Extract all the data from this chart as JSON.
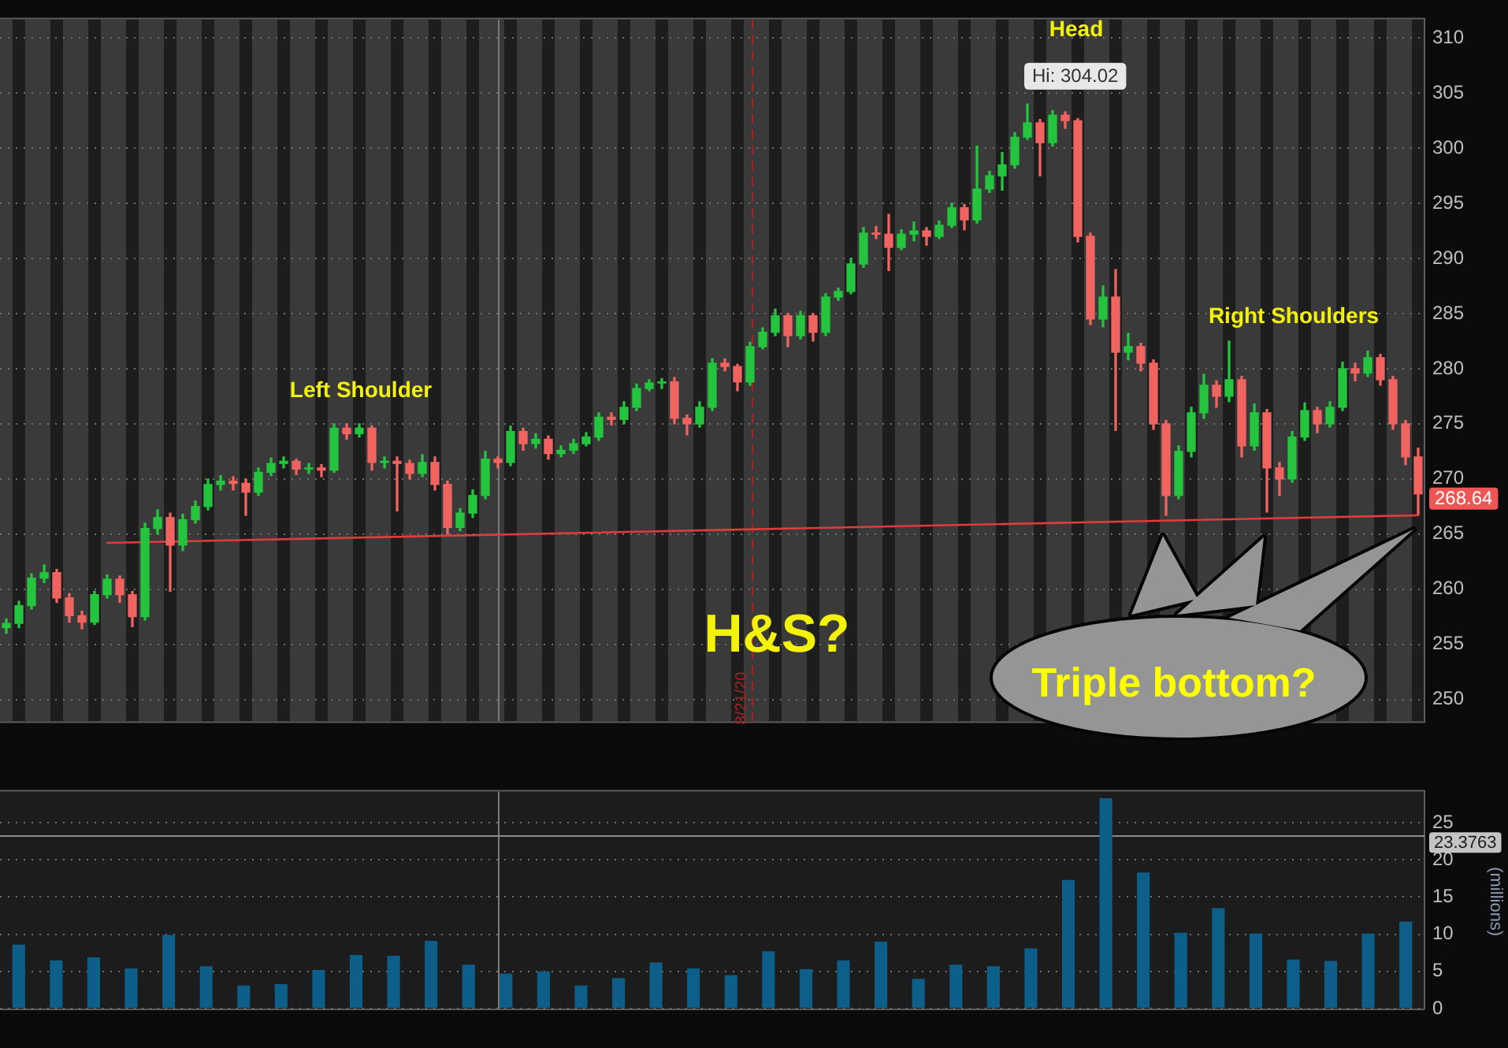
{
  "chart_data": [
    {
      "type": "candlestick",
      "categories": [
        null,
        null,
        null,
        null,
        null,
        null,
        null,
        null,
        null,
        null,
        null,
        null,
        null,
        null,
        null,
        null,
        null,
        null,
        null,
        null,
        null,
        null,
        null,
        null,
        null,
        null,
        null,
        null,
        null,
        null,
        null,
        null,
        null,
        null,
        null,
        null,
        null,
        null,
        null,
        null,
        null,
        null,
        null,
        null,
        null,
        null,
        null,
        null,
        null,
        null,
        null,
        null,
        null,
        null,
        null,
        null,
        null,
        null,
        null,
        null,
        null,
        null,
        null,
        null,
        null,
        null,
        null,
        null,
        null,
        null,
        null,
        null,
        null,
        null,
        null,
        null,
        null,
        null,
        null,
        null,
        null,
        null,
        null,
        null,
        null,
        null,
        null,
        null,
        null,
        null,
        null,
        null,
        null,
        null,
        null,
        null,
        null,
        null,
        null,
        null,
        null,
        null,
        null,
        null,
        null,
        null,
        null,
        null,
        null,
        null,
        null,
        null,
        null
      ],
      "ohlc": [
        [
          256.5,
          257.3,
          256.0,
          256.9
        ],
        [
          256.9,
          258.9,
          256.5,
          258.5
        ],
        [
          258.5,
          261.4,
          258.2,
          261.0
        ],
        [
          261.0,
          262.2,
          260.6,
          261.5
        ],
        [
          261.5,
          261.8,
          258.8,
          259.2
        ],
        [
          259.2,
          259.6,
          257.0,
          257.6
        ],
        [
          257.6,
          258.0,
          256.4,
          257.0
        ],
        [
          257.0,
          259.8,
          256.8,
          259.5
        ],
        [
          259.5,
          261.3,
          259.2,
          260.9
        ],
        [
          260.9,
          261.2,
          258.8,
          259.5
        ],
        [
          259.5,
          259.8,
          256.6,
          257.5
        ],
        [
          257.5,
          266.0,
          257.2,
          265.5
        ],
        [
          265.5,
          267.2,
          265.0,
          266.5
        ],
        [
          266.5,
          266.9,
          259.8,
          264.0
        ],
        [
          264.0,
          266.8,
          263.5,
          266.3
        ],
        [
          266.3,
          268.0,
          266.0,
          267.5
        ],
        [
          267.5,
          270.0,
          267.2,
          269.5
        ],
        [
          269.5,
          270.3,
          269.0,
          269.8
        ],
        [
          269.8,
          270.2,
          269.0,
          269.6
        ],
        [
          269.6,
          270.0,
          266.7,
          268.8
        ],
        [
          268.8,
          271.0,
          268.5,
          270.6
        ],
        [
          270.6,
          271.9,
          270.3,
          271.4
        ],
        [
          271.4,
          272.0,
          271.0,
          271.6
        ],
        [
          271.6,
          271.8,
          270.4,
          270.9
        ],
        [
          270.9,
          271.4,
          270.5,
          271.0
        ],
        [
          271.0,
          271.3,
          270.2,
          270.8
        ],
        [
          270.8,
          275.0,
          270.6,
          274.6
        ],
        [
          274.6,
          275.0,
          273.6,
          274.1
        ],
        [
          274.1,
          275.0,
          273.8,
          274.6
        ],
        [
          274.6,
          274.8,
          270.8,
          271.5
        ],
        [
          271.5,
          272.0,
          271.0,
          271.6
        ],
        [
          271.6,
          272.0,
          267.1,
          271.4
        ],
        [
          271.4,
          271.7,
          270.0,
          270.5
        ],
        [
          270.5,
          272.2,
          270.2,
          271.5
        ],
        [
          271.5,
          272.0,
          269.0,
          269.5
        ],
        [
          269.5,
          269.8,
          265.0,
          265.6
        ],
        [
          265.6,
          267.3,
          265.3,
          266.9
        ],
        [
          266.9,
          269.0,
          266.5,
          268.5
        ],
        [
          268.5,
          272.5,
          268.2,
          271.8
        ],
        [
          271.8,
          272.0,
          271.0,
          271.5
        ],
        [
          271.5,
          274.8,
          271.2,
          274.3
        ],
        [
          274.3,
          274.6,
          272.6,
          273.2
        ],
        [
          273.2,
          274.1,
          272.8,
          273.6
        ],
        [
          273.6,
          273.9,
          271.8,
          272.3
        ],
        [
          272.3,
          273.0,
          272.0,
          272.6
        ],
        [
          272.6,
          273.6,
          272.3,
          273.2
        ],
        [
          273.2,
          274.2,
          273.0,
          273.8
        ],
        [
          273.8,
          276.0,
          273.5,
          275.6
        ],
        [
          275.6,
          276.0,
          274.9,
          275.4
        ],
        [
          275.4,
          277.0,
          275.0,
          276.5
        ],
        [
          276.5,
          278.6,
          276.2,
          278.2
        ],
        [
          278.2,
          279.0,
          278.0,
          278.7
        ],
        [
          278.7,
          279.1,
          278.2,
          278.8
        ],
        [
          278.8,
          279.2,
          275.0,
          275.5
        ],
        [
          275.5,
          275.8,
          274.0,
          275.0
        ],
        [
          275.0,
          277.0,
          274.7,
          276.5
        ],
        [
          276.5,
          280.9,
          276.2,
          280.5
        ],
        [
          280.5,
          280.9,
          279.8,
          280.2
        ],
        [
          280.2,
          280.4,
          278.0,
          278.8
        ],
        [
          278.8,
          282.4,
          278.5,
          282.0
        ],
        [
          282.0,
          283.7,
          281.8,
          283.3
        ],
        [
          283.3,
          285.4,
          283.0,
          284.8
        ],
        [
          284.8,
          285.0,
          282.0,
          283.0
        ],
        [
          283.0,
          285.2,
          282.7,
          284.8
        ],
        [
          284.8,
          285.0,
          282.5,
          283.3
        ],
        [
          283.3,
          286.8,
          283.0,
          286.5
        ],
        [
          286.5,
          287.3,
          286.2,
          287.0
        ],
        [
          287.0,
          290.0,
          286.8,
          289.5
        ],
        [
          289.5,
          292.8,
          289.2,
          292.3
        ],
        [
          292.3,
          292.9,
          291.8,
          292.2
        ],
        [
          292.2,
          294.0,
          288.9,
          291.0
        ],
        [
          291.0,
          292.6,
          290.8,
          292.2
        ],
        [
          292.2,
          293.3,
          291.6,
          292.5
        ],
        [
          292.5,
          292.8,
          291.2,
          292.0
        ],
        [
          292.0,
          293.4,
          291.8,
          293.0
        ],
        [
          293.0,
          295.0,
          292.8,
          294.6
        ],
        [
          294.6,
          294.9,
          292.6,
          293.5
        ],
        [
          293.5,
          300.2,
          293.2,
          296.3
        ],
        [
          296.3,
          297.9,
          296.0,
          297.5
        ],
        [
          297.5,
          299.6,
          296.2,
          298.5
        ],
        [
          298.5,
          301.4,
          298.2,
          301.0
        ],
        [
          301.0,
          304.02,
          300.8,
          302.3
        ],
        [
          302.3,
          302.6,
          297.5,
          300.5
        ],
        [
          300.5,
          303.4,
          300.2,
          303.0
        ],
        [
          303.0,
          303.3,
          301.8,
          302.5
        ],
        [
          302.5,
          302.7,
          291.5,
          292.0
        ],
        [
          292.0,
          292.3,
          284.0,
          284.5
        ],
        [
          284.5,
          287.5,
          283.8,
          286.5
        ],
        [
          286.5,
          289.0,
          274.4,
          281.5
        ],
        [
          281.5,
          283.2,
          280.8,
          282.0
        ],
        [
          282.0,
          282.3,
          279.8,
          280.5
        ],
        [
          280.5,
          280.8,
          274.5,
          275.0
        ],
        [
          275.0,
          275.3,
          266.7,
          268.5
        ],
        [
          268.5,
          273.0,
          268.2,
          272.5
        ],
        [
          272.5,
          276.5,
          272.0,
          276.0
        ],
        [
          276.0,
          279.5,
          275.5,
          278.5
        ],
        [
          278.5,
          278.9,
          276.5,
          277.5
        ],
        [
          277.5,
          282.5,
          277.0,
          279.0
        ],
        [
          279.0,
          279.3,
          272.0,
          273.0
        ],
        [
          273.0,
          276.8,
          272.6,
          276.0
        ],
        [
          276.0,
          276.3,
          267.0,
          271.0
        ],
        [
          271.0,
          271.5,
          268.5,
          270.0
        ],
        [
          270.0,
          274.3,
          269.7,
          273.8
        ],
        [
          273.8,
          276.9,
          273.5,
          276.2
        ],
        [
          276.2,
          276.5,
          274.2,
          275.0
        ],
        [
          275.0,
          277.0,
          274.7,
          276.5
        ],
        [
          276.5,
          280.6,
          276.2,
          280.0
        ],
        [
          280.0,
          280.5,
          278.9,
          279.6
        ],
        [
          279.6,
          281.6,
          279.3,
          281.0
        ],
        [
          281.0,
          281.3,
          278.5,
          279.0
        ],
        [
          279.0,
          279.3,
          274.5,
          275.0
        ],
        [
          275.0,
          275.3,
          271.3,
          272.0
        ],
        [
          272.0,
          272.8,
          266.8,
          268.64
        ]
      ],
      "colors": [
        "#25c43f",
        "#25c43f",
        "#25c43f",
        "#25c43f",
        "#ef6461",
        "#ef6461",
        "#ef6461",
        "#25c43f",
        "#25c43f",
        "#ef6461",
        "#ef6461",
        "#25c43f",
        "#25c43f",
        "#ef6461",
        "#25c43f",
        "#25c43f",
        "#25c43f",
        "#25c43f",
        "#ef6461",
        "#ef6461",
        "#25c43f",
        "#25c43f",
        "#25c43f",
        "#ef6461",
        "#25c43f",
        "#ef6461",
        "#25c43f",
        "#ef6461",
        "#25c43f",
        "#ef6461",
        "#25c43f",
        "#ef6461",
        "#ef6461",
        "#25c43f",
        "#ef6461",
        "#ef6461",
        "#25c43f",
        "#25c43f",
        "#25c43f",
        "#ef6461",
        "#25c43f",
        "#ef6461",
        "#25c43f",
        "#ef6461",
        "#25c43f",
        "#25c43f",
        "#25c43f",
        "#25c43f",
        "#ef6461",
        "#25c43f",
        "#25c43f",
        "#25c43f",
        "#25c43f",
        "#ef6461",
        "#ef6461",
        "#25c43f",
        "#25c43f",
        "#ef6461",
        "#ef6461",
        "#25c43f",
        "#25c43f",
        "#25c43f",
        "#ef6461",
        "#25c43f",
        "#ef6461",
        "#25c43f",
        "#25c43f",
        "#25c43f",
        "#25c43f",
        "#ef6461",
        "#ef6461",
        "#25c43f",
        "#25c43f",
        "#ef6461",
        "#25c43f",
        "#25c43f",
        "#ef6461",
        "#25c43f",
        "#25c43f",
        "#25c43f",
        "#25c43f",
        "#25c43f",
        "#ef6461",
        "#25c43f",
        "#ef6461",
        "#ef6461",
        "#ef6461",
        "#25c43f",
        "#ef6461",
        "#25c43f",
        "#ef6461",
        "#ef6461",
        "#ef6461",
        "#25c43f",
        "#25c43f",
        "#25c43f",
        "#ef6461",
        "#25c43f",
        "#ef6461",
        "#25c43f",
        "#ef6461",
        "#ef6461",
        "#25c43f",
        "#25c43f",
        "#ef6461",
        "#25c43f",
        "#25c43f",
        "#ef6461",
        "#25c43f",
        "#ef6461",
        "#ef6461",
        "#ef6461",
        "#ef6461"
      ],
      "series": [
        {
          "type": "line",
          "color": "#e23b3b",
          "values": [
            null,
            null,
            null,
            null,
            null,
            null,
            null,
            null,
            264.2,
            null,
            null,
            null,
            null,
            null,
            null,
            null,
            null,
            null,
            null,
            null,
            null,
            null,
            null,
            null,
            null,
            null,
            null,
            null,
            null,
            null,
            null,
            null,
            null,
            null,
            null,
            null,
            null,
            null,
            null,
            null,
            null,
            null,
            null,
            null,
            null,
            null,
            null,
            null,
            null,
            null,
            null,
            null,
            null,
            null,
            null,
            null,
            null,
            null,
            null,
            null,
            null,
            null,
            null,
            null,
            null,
            null,
            null,
            null,
            null,
            null,
            null,
            null,
            null,
            null,
            null,
            null,
            null,
            null,
            null,
            null,
            null,
            null,
            null,
            null,
            null,
            null,
            null,
            null,
            null,
            null,
            null,
            null,
            null,
            null,
            null,
            null,
            null,
            null,
            null,
            null,
            null,
            null,
            null,
            null,
            null,
            null,
            null,
            null,
            null,
            null,
            null,
            null,
            266.7
          ]
        }
      ],
      "ylim": [
        248,
        311.7
      ],
      "yticks": [
        250,
        255,
        260,
        265,
        270,
        275,
        280,
        285,
        290,
        295,
        300,
        305,
        310
      ],
      "grid": "y",
      "tick_labels": "y",
      "annotations": [
        "Head",
        "Left Shoulder",
        "Right Shoulders",
        "H&S?",
        "Triple bottom?",
        "8/21/20",
        "Hi: 304.02",
        "268.64"
      ]
    },
    {
      "type": "bar",
      "categories": [
        null,
        null,
        null,
        null,
        null,
        null,
        null,
        null,
        null,
        null,
        null,
        null,
        null,
        null,
        null,
        null,
        null,
        null,
        null,
        null,
        null,
        null,
        null,
        null,
        null,
        null,
        null,
        null,
        null,
        null,
        null,
        null,
        null,
        null,
        null,
        null,
        null,
        null
      ],
      "values": [
        8.6,
        6.5,
        6.9,
        5.4,
        9.9,
        5.7,
        3.1,
        3.3,
        5.2,
        7.2,
        7.1,
        9.1,
        5.9,
        4.7,
        5.0,
        3.1,
        4.1,
        6.2,
        5.4,
        4.5,
        7.7,
        5.3,
        6.5,
        9.0,
        4.0,
        5.9,
        5.7,
        8.1,
        17.3,
        28.3,
        18.3,
        10.2,
        13.5,
        10.1,
        6.6,
        6.4,
        10.1,
        11.7
      ],
      "color": "#0d5e88",
      "ylim": [
        0,
        29.2
      ],
      "yticks": [
        0,
        5,
        10,
        15,
        20,
        25
      ],
      "ylabel": "(millions)",
      "ref_lines": [
        {
          "axis": "y",
          "value": 23.3763,
          "label": "23.3763",
          "color": "#8c8c8c"
        }
      ],
      "grid": "y",
      "tick_labels": "y"
    }
  ]
}
